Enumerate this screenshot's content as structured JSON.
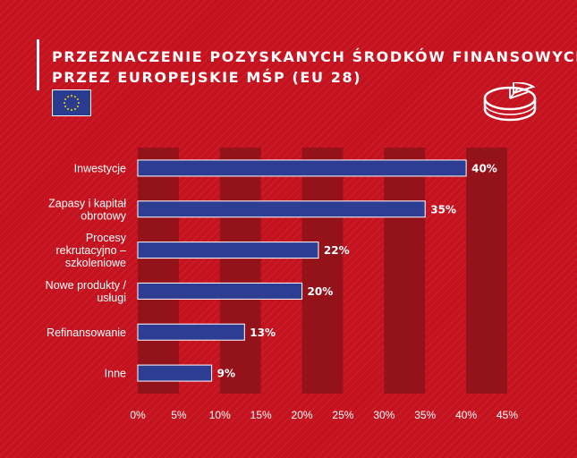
{
  "title_lines": [
    "PRZEZNACZENIE POZYSKANYCH ŚRODKÓW FINANSOWYCH",
    "PRZEZ EUROPEJSKIE MŚP (EU 28)"
  ],
  "icons": {
    "flag": "eu-flag-icon",
    "pie": "pie-chart-icon"
  },
  "colors": {
    "background": "#c5121f",
    "band": "#94121a",
    "bar": "#2d3d92",
    "bar_border": "#ffffff",
    "text": "#ffffff",
    "flag_blue": "#2a3c8f",
    "flag_star": "#f5d500"
  },
  "chart_data": {
    "type": "bar",
    "orientation": "horizontal",
    "categories": [
      [
        "Inwestycje"
      ],
      [
        "Zapasy i kapitał",
        "obrotowy"
      ],
      [
        "Procesy",
        "rekrutacyjno –",
        "szkoleniowe"
      ],
      [
        "Nowe produkty /",
        "usługi"
      ],
      [
        "Refinansowanie"
      ],
      [
        "Inne"
      ]
    ],
    "values": [
      40,
      35,
      22,
      20,
      13,
      9
    ],
    "value_labels": [
      "40%",
      "35%",
      "22%",
      "20%",
      "13%",
      "9%"
    ],
    "xlim": [
      0,
      45
    ],
    "xticks": [
      0,
      5,
      10,
      15,
      20,
      25,
      30,
      35,
      40,
      45
    ],
    "xtick_labels": [
      "0%",
      "5%",
      "10%",
      "15%",
      "20%",
      "25%",
      "30%",
      "35%",
      "40%",
      "45%"
    ],
    "alternating_bands": true,
    "grid": false
  }
}
